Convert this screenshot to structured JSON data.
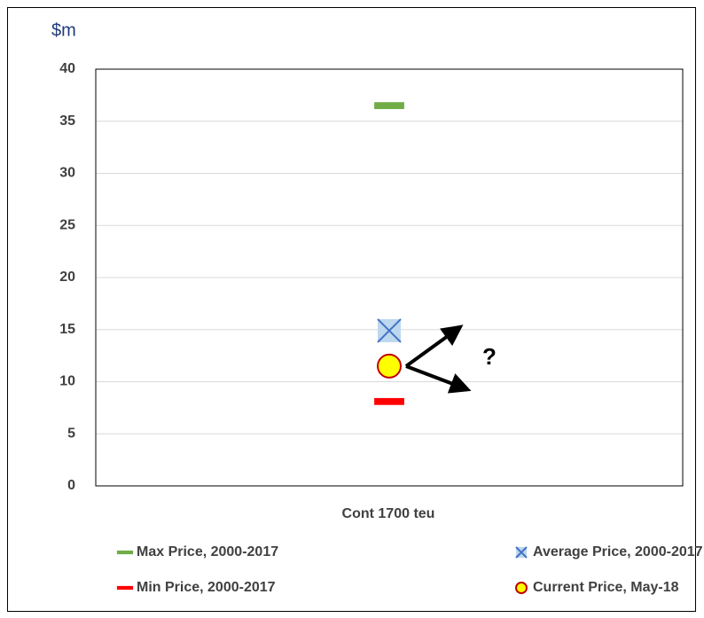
{
  "chart_data": {
    "type": "scatter",
    "ylabel": "$m",
    "categories": [
      "Cont 1700 teu"
    ],
    "series": [
      {
        "name": "Max Price, 2000-2017",
        "marker": "dash",
        "color": "#70ad47",
        "values": [
          36.5
        ]
      },
      {
        "name": "Average Price, 2000-2017",
        "marker": "x",
        "color": "#4472c4",
        "fill": "#bdd7ee",
        "values": [
          14.9
        ]
      },
      {
        "name": "Min Price, 2000-2017",
        "marker": "dash",
        "color": "#ff0000",
        "values": [
          8.1
        ]
      },
      {
        "name": "Current Price, May-18",
        "marker": "circle",
        "color": "#ffff00",
        "edgecolor": "#c00000",
        "values": [
          11.5
        ]
      }
    ],
    "annotation": "?",
    "ylim": [
      0,
      40
    ],
    "yticks": [
      0,
      5,
      10,
      15,
      20,
      25,
      30,
      35,
      40
    ],
    "grid": true
  }
}
